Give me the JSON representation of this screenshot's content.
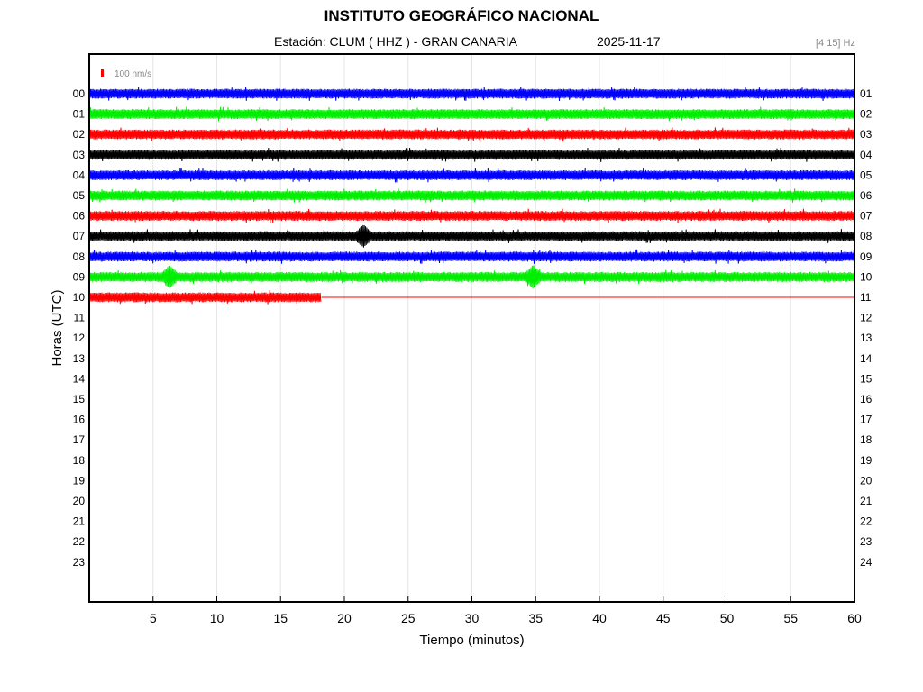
{
  "header": {
    "title": "INSTITUTO GEOGRÁFICO NACIONAL",
    "station": "Estación:  CLUM ( HHZ ) - GRAN CANARIA",
    "date": "2025-11-17",
    "filter": "[4 15] Hz"
  },
  "colors": {
    "series": [
      "#0000ff",
      "#00ee00",
      "#ff0000",
      "#000000"
    ],
    "grid": "#e6e6e6",
    "scale_bar": "#ff0000"
  },
  "chart_data": {
    "type": "line",
    "xlabel": "Tiempo (minutos)",
    "ylabel": "Horas (UTC)",
    "xlim": [
      0,
      60
    ],
    "x_ticks": [
      5,
      10,
      15,
      20,
      25,
      30,
      35,
      40,
      45,
      50,
      55,
      60
    ],
    "grid": true,
    "scale_bar_label": "100 nm/s",
    "left_hour_labels": [
      "00",
      "01",
      "02",
      "03",
      "04",
      "05",
      "06",
      "07",
      "08",
      "09",
      "10",
      "11",
      "12",
      "13",
      "14",
      "15",
      "16",
      "17",
      "18",
      "19",
      "20",
      "21",
      "22",
      "23"
    ],
    "right_hour_labels": [
      "01",
      "02",
      "03",
      "04",
      "05",
      "06",
      "07",
      "08",
      "09",
      "10",
      "11",
      "12",
      "13",
      "14",
      "15",
      "16",
      "17",
      "18",
      "19",
      "20",
      "21",
      "22",
      "23",
      "24"
    ],
    "series": [
      {
        "hour": "00",
        "color_index": 0,
        "end_minute": 60,
        "events": []
      },
      {
        "hour": "01",
        "color_index": 1,
        "end_minute": 60,
        "events": []
      },
      {
        "hour": "02",
        "color_index": 2,
        "end_minute": 60,
        "events": []
      },
      {
        "hour": "03",
        "color_index": 3,
        "end_minute": 60,
        "events": []
      },
      {
        "hour": "04",
        "color_index": 0,
        "end_minute": 60,
        "events": []
      },
      {
        "hour": "05",
        "color_index": 1,
        "end_minute": 60,
        "events": []
      },
      {
        "hour": "06",
        "color_index": 2,
        "end_minute": 60,
        "events": []
      },
      {
        "hour": "07",
        "color_index": 3,
        "end_minute": 60,
        "events": [
          21.5
        ]
      },
      {
        "hour": "08",
        "color_index": 0,
        "end_minute": 60,
        "events": []
      },
      {
        "hour": "09",
        "color_index": 1,
        "end_minute": 60,
        "events": [
          6.3,
          34.8
        ]
      },
      {
        "hour": "10",
        "color_index": 2,
        "end_minute": 18.2,
        "events": []
      }
    ]
  }
}
